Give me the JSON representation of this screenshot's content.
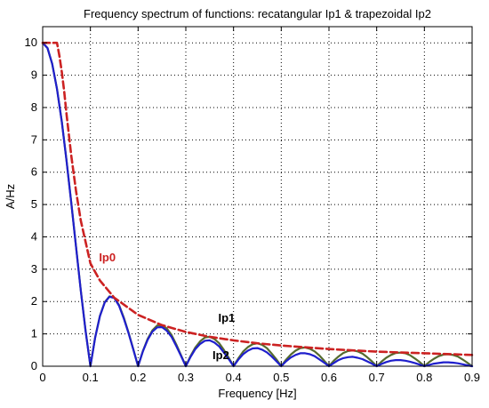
{
  "chart_data": {
    "type": "line",
    "title": "Frequency spectrum of functions: recatangular Ip1 & trapezoidal Ip2",
    "xlabel": "Frequency [Hz]",
    "ylabel": "A/Hz",
    "xlim": [
      0,
      0.9
    ],
    "ylim": [
      0,
      10.5
    ],
    "x_ticks": [
      "0",
      "0.1",
      "0.2",
      "0.3",
      "0.4",
      "0.5",
      "0.6",
      "0.7",
      "0.8",
      "0.9"
    ],
    "y_ticks": [
      "0",
      "1",
      "2",
      "3",
      "4",
      "5",
      "6",
      "7",
      "8",
      "9",
      "10"
    ],
    "grid": true,
    "series": [
      {
        "name": "Ip0",
        "color": "#cc2222",
        "style": "dashed",
        "x": [
          0,
          0.01,
          0.02,
          0.03,
          0.035,
          0.04,
          0.045,
          0.05,
          0.06,
          0.07,
          0.08,
          0.1,
          0.12,
          0.15,
          0.2,
          0.25,
          0.3,
          0.35,
          0.4,
          0.45,
          0.5,
          0.6,
          0.7,
          0.8,
          0.9
        ],
        "y": [
          10,
          10,
          10,
          10,
          9.6,
          9.1,
          8.5,
          7.8,
          6.5,
          5.4,
          4.5,
          3.18,
          2.65,
          2.12,
          1.59,
          1.27,
          1.06,
          0.91,
          0.8,
          0.71,
          0.64,
          0.53,
          0.45,
          0.4,
          0.35
        ]
      },
      {
        "name": "Ip1",
        "color": "#556b2f",
        "style": "solid",
        "x": [
          0,
          0.01,
          0.02,
          0.03,
          0.04,
          0.05,
          0.06,
          0.07,
          0.08,
          0.09,
          0.1,
          0.11,
          0.12,
          0.13,
          0.14,
          0.15,
          0.16,
          0.17,
          0.18,
          0.19,
          0.2,
          0.21,
          0.22,
          0.23,
          0.24,
          0.25,
          0.26,
          0.27,
          0.28,
          0.29,
          0.3,
          0.31,
          0.32,
          0.33,
          0.34,
          0.35,
          0.36,
          0.37,
          0.38,
          0.39,
          0.4,
          0.41,
          0.42,
          0.43,
          0.44,
          0.45,
          0.46,
          0.47,
          0.48,
          0.49,
          0.5,
          0.51,
          0.52,
          0.53,
          0.54,
          0.55,
          0.56,
          0.57,
          0.58,
          0.59,
          0.6,
          0.61,
          0.62,
          0.63,
          0.64,
          0.65,
          0.66,
          0.67,
          0.68,
          0.69,
          0.7,
          0.71,
          0.72,
          0.73,
          0.74,
          0.75,
          0.76,
          0.77,
          0.78,
          0.79,
          0.8,
          0.81,
          0.82,
          0.83,
          0.84,
          0.85,
          0.86,
          0.87,
          0.88,
          0.89,
          0.9
        ],
        "y": [
          10,
          9.84,
          9.35,
          8.58,
          7.57,
          6.37,
          5.05,
          3.68,
          2.34,
          1.09,
          0,
          0.89,
          1.56,
          1.98,
          2.16,
          2.12,
          1.89,
          1.51,
          1.04,
          0.52,
          0,
          0.47,
          0.85,
          1.11,
          1.26,
          1.27,
          1.17,
          0.97,
          0.67,
          0.34,
          0,
          0.32,
          0.58,
          0.77,
          0.89,
          0.91,
          0.84,
          0.71,
          0.5,
          0.26,
          0,
          0.24,
          0.45,
          0.59,
          0.68,
          0.71,
          0.66,
          0.56,
          0.39,
          0.21,
          0,
          0.2,
          0.36,
          0.48,
          0.56,
          0.58,
          0.54,
          0.46,
          0.33,
          0.17,
          0,
          0.17,
          0.3,
          0.41,
          0.47,
          0.49,
          0.46,
          0.39,
          0.28,
          0.15,
          0,
          0.14,
          0.26,
          0.35,
          0.41,
          0.42,
          0.4,
          0.34,
          0.24,
          0.13,
          0,
          0.13,
          0.23,
          0.31,
          0.36,
          0.37,
          0.35,
          0.3,
          0.21,
          0.11,
          0
        ]
      },
      {
        "name": "Ip2",
        "color": "#1f1fcc",
        "style": "solid",
        "x": [
          0,
          0.01,
          0.02,
          0.03,
          0.04,
          0.05,
          0.06,
          0.07,
          0.08,
          0.09,
          0.1,
          0.11,
          0.12,
          0.13,
          0.14,
          0.15,
          0.16,
          0.17,
          0.18,
          0.19,
          0.2,
          0.21,
          0.22,
          0.23,
          0.24,
          0.25,
          0.26,
          0.27,
          0.28,
          0.29,
          0.3,
          0.31,
          0.32,
          0.33,
          0.34,
          0.35,
          0.36,
          0.37,
          0.38,
          0.39,
          0.4,
          0.41,
          0.42,
          0.43,
          0.44,
          0.45,
          0.46,
          0.47,
          0.48,
          0.49,
          0.5,
          0.51,
          0.52,
          0.53,
          0.54,
          0.55,
          0.56,
          0.57,
          0.58,
          0.59,
          0.6,
          0.61,
          0.62,
          0.63,
          0.64,
          0.65,
          0.66,
          0.67,
          0.68,
          0.69,
          0.7,
          0.71,
          0.72,
          0.73,
          0.74,
          0.75,
          0.76,
          0.77,
          0.78,
          0.79,
          0.8,
          0.81,
          0.82,
          0.83,
          0.84,
          0.85,
          0.86,
          0.87,
          0.88,
          0.89,
          0.9
        ],
        "y": [
          10,
          9.84,
          9.35,
          8.57,
          7.56,
          6.36,
          5.04,
          3.67,
          2.33,
          1.08,
          0,
          0.88,
          1.55,
          1.97,
          2.15,
          2.11,
          1.87,
          1.48,
          1.02,
          0.51,
          0,
          0.46,
          0.82,
          1.07,
          1.2,
          1.21,
          1.1,
          0.91,
          0.62,
          0.32,
          0,
          0.29,
          0.53,
          0.69,
          0.79,
          0.8,
          0.73,
          0.61,
          0.42,
          0.22,
          0,
          0.2,
          0.37,
          0.48,
          0.55,
          0.56,
          0.51,
          0.43,
          0.3,
          0.15,
          0,
          0.15,
          0.27,
          0.35,
          0.4,
          0.4,
          0.37,
          0.31,
          0.21,
          0.11,
          0,
          0.1,
          0.19,
          0.25,
          0.28,
          0.29,
          0.26,
          0.22,
          0.15,
          0.08,
          0,
          0.07,
          0.13,
          0.17,
          0.19,
          0.19,
          0.17,
          0.14,
          0.1,
          0.05,
          0,
          0.04,
          0.08,
          0.1,
          0.12,
          0.12,
          0.11,
          0.09,
          0.06,
          0.03,
          0
        ]
      }
    ],
    "annotations": [
      {
        "text": "Ip0",
        "x": 0.118,
        "y": 3.25,
        "color": "#cc2222"
      },
      {
        "text": "Ip1",
        "x": 0.368,
        "y": 1.38,
        "color": "#000000"
      },
      {
        "text": "Ip2",
        "x": 0.356,
        "y": 0.22,
        "color": "#000000"
      }
    ]
  }
}
